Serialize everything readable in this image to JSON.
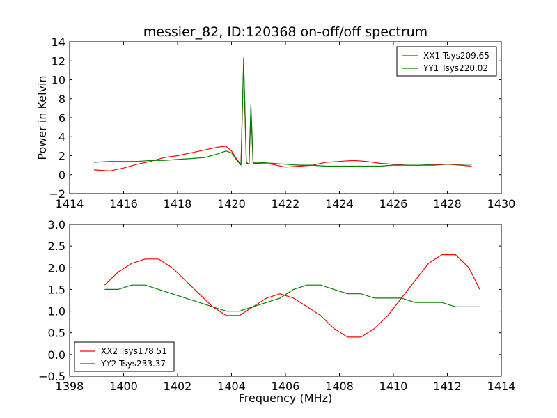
{
  "chart_data": [
    {
      "type": "line",
      "title": "messier_82, ID:120368 on-off/off spectrum",
      "xlabel": "",
      "ylabel": "Power in Kelvin",
      "xlim": [
        1414,
        1430
      ],
      "ylim": [
        -2,
        14
      ],
      "xticks": [
        1414,
        1416,
        1418,
        1420,
        1422,
        1424,
        1426,
        1428,
        1430
      ],
      "yticks": [
        -2,
        0,
        2,
        4,
        6,
        8,
        10,
        12,
        14
      ],
      "legend_position": "top-right",
      "series": [
        {
          "name": "XX1 Tsys209.65",
          "color": "#ff0000",
          "x": [
            1414.9,
            1415.5,
            1416.0,
            1416.5,
            1417.0,
            1417.5,
            1418.0,
            1418.5,
            1419.0,
            1419.5,
            1419.8,
            1420.0,
            1420.2,
            1420.35,
            1420.45,
            1420.55,
            1420.65,
            1420.72,
            1420.8,
            1421.0,
            1421.5,
            1422.0,
            1422.5,
            1423.0,
            1423.5,
            1424.0,
            1424.5,
            1425.0,
            1425.5,
            1426.0,
            1426.5,
            1427.0,
            1427.5,
            1428.0,
            1428.5,
            1428.9
          ],
          "y": [
            0.5,
            0.4,
            0.7,
            1.1,
            1.4,
            1.8,
            2.0,
            2.3,
            2.6,
            2.9,
            3.0,
            2.5,
            1.6,
            1.1,
            11.8,
            1.2,
            1.1,
            6.9,
            1.2,
            1.2,
            1.1,
            0.8,
            0.9,
            1.0,
            1.3,
            1.4,
            1.5,
            1.4,
            1.2,
            1.1,
            1.0,
            1.0,
            1.0,
            1.1,
            1.0,
            0.9
          ]
        },
        {
          "name": "YY1 Tsys220.02",
          "color": "#008000",
          "x": [
            1414.9,
            1415.5,
            1416.0,
            1416.5,
            1417.0,
            1417.5,
            1418.0,
            1418.5,
            1419.0,
            1419.5,
            1419.8,
            1420.0,
            1420.2,
            1420.35,
            1420.45,
            1420.55,
            1420.65,
            1420.72,
            1420.8,
            1421.0,
            1421.5,
            1422.0,
            1422.5,
            1423.0,
            1423.5,
            1424.0,
            1424.5,
            1425.0,
            1425.5,
            1426.0,
            1426.5,
            1427.0,
            1427.5,
            1428.0,
            1428.5,
            1428.9
          ],
          "y": [
            1.3,
            1.4,
            1.4,
            1.4,
            1.5,
            1.5,
            1.6,
            1.7,
            1.8,
            2.2,
            2.5,
            2.3,
            1.5,
            1.0,
            12.3,
            1.3,
            1.1,
            7.4,
            1.3,
            1.3,
            1.2,
            1.1,
            1.0,
            1.0,
            0.9,
            0.9,
            0.9,
            0.9,
            0.9,
            1.0,
            1.0,
            1.0,
            1.1,
            1.1,
            1.1,
            1.1
          ]
        }
      ]
    },
    {
      "type": "line",
      "title": "",
      "xlabel": "Frequency (MHz)",
      "ylabel": "",
      "xlim": [
        1398,
        1414
      ],
      "ylim": [
        -0.5,
        3.0
      ],
      "xticks": [
        1398,
        1400,
        1402,
        1404,
        1406,
        1408,
        1410,
        1412,
        1414
      ],
      "yticks": [
        -0.5,
        0.0,
        0.5,
        1.0,
        1.5,
        2.0,
        2.5,
        3.0
      ],
      "legend_position": "lower-left",
      "series": [
        {
          "name": "XX2 Tsys178.51",
          "color": "#ff0000",
          "x": [
            1399.3,
            1399.8,
            1400.3,
            1400.8,
            1401.3,
            1401.8,
            1402.3,
            1402.8,
            1403.3,
            1403.8,
            1404.3,
            1404.8,
            1405.3,
            1405.8,
            1406.3,
            1406.8,
            1407.3,
            1407.8,
            1408.3,
            1408.8,
            1409.3,
            1409.8,
            1410.3,
            1410.8,
            1411.3,
            1411.8,
            1412.3,
            1412.8,
            1413.2
          ],
          "y": [
            1.6,
            1.9,
            2.1,
            2.2,
            2.2,
            2.0,
            1.7,
            1.4,
            1.1,
            0.9,
            0.9,
            1.1,
            1.3,
            1.4,
            1.3,
            1.1,
            0.9,
            0.6,
            0.4,
            0.4,
            0.6,
            0.9,
            1.3,
            1.7,
            2.1,
            2.3,
            2.3,
            2.0,
            1.5
          ]
        },
        {
          "name": "YY2 Tsys233.37",
          "color": "#008000",
          "x": [
            1399.3,
            1399.8,
            1400.3,
            1400.8,
            1401.3,
            1401.8,
            1402.3,
            1402.8,
            1403.3,
            1403.8,
            1404.3,
            1404.8,
            1405.3,
            1405.8,
            1406.3,
            1406.8,
            1407.3,
            1407.8,
            1408.3,
            1408.8,
            1409.3,
            1409.8,
            1410.3,
            1410.8,
            1411.3,
            1411.8,
            1412.3,
            1412.8,
            1413.2
          ],
          "y": [
            1.5,
            1.5,
            1.6,
            1.6,
            1.5,
            1.4,
            1.3,
            1.2,
            1.1,
            1.0,
            1.0,
            1.1,
            1.2,
            1.3,
            1.5,
            1.6,
            1.6,
            1.5,
            1.4,
            1.4,
            1.3,
            1.3,
            1.3,
            1.2,
            1.2,
            1.2,
            1.1,
            1.1,
            1.1
          ]
        }
      ]
    }
  ]
}
